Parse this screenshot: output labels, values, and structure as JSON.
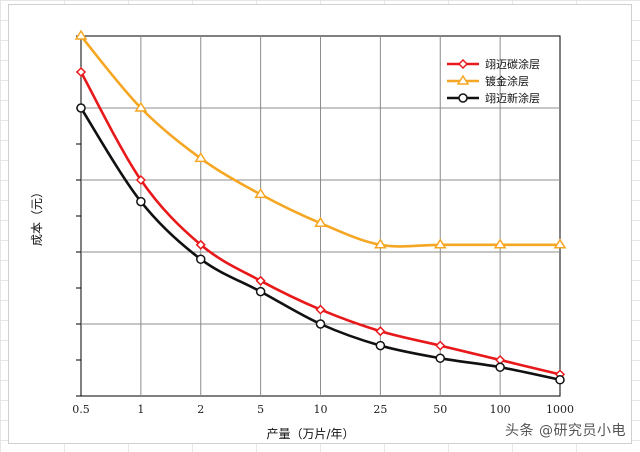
{
  "chart_data": {
    "type": "line",
    "xlabel": "产量（万片/年）",
    "ylabel": "成本（元）",
    "categories": [
      "0.5",
      "1",
      "2",
      "5",
      "10",
      "25",
      "50",
      "100",
      "1000"
    ],
    "y_tick_labels_visible": false,
    "ylim": [
      0,
      10
    ],
    "grid": true,
    "legend_position": "top-right",
    "series": [
      {
        "name": "翊迈碳涂层",
        "color": "#e8191b",
        "marker": "diamond",
        "values": [
          9.0,
          6.0,
          4.2,
          3.2,
          2.4,
          1.8,
          1.4,
          1.0,
          0.6
        ]
      },
      {
        "name": "镀金涂层",
        "color": "#f5a623",
        "marker": "triangle",
        "values": [
          10.0,
          8.0,
          6.6,
          5.6,
          4.8,
          4.2,
          4.2,
          4.2,
          4.2
        ]
      },
      {
        "name": "翊迈新涂层",
        "color": "#111111",
        "marker": "circle",
        "values": [
          8.0,
          5.4,
          3.8,
          2.9,
          2.0,
          1.4,
          1.05,
          0.8,
          0.45
        ]
      }
    ]
  },
  "watermark": "头条 @研究员小电"
}
